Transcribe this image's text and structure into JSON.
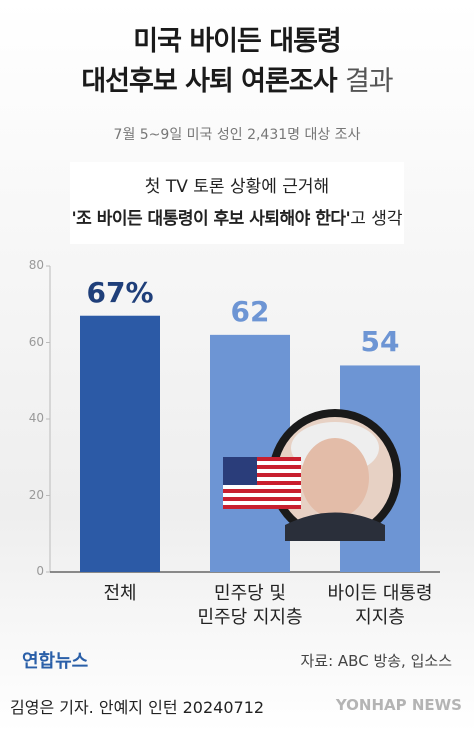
{
  "chart_data": {
    "type": "bar",
    "title": "미국 바이든 대통령\n대선후보 사퇴 여론조사",
    "title_suffix": "결과",
    "subtitle": "7월 5~9일 미국 성인 2,431명 대상 조사",
    "question": {
      "line1": "첫 TV 토론 상황에 근거해",
      "quote": "'조 바이든 대통령이 후보 사퇴해야 한다'",
      "suffix": "고 생각"
    },
    "categories": [
      "전체",
      "민주당 및\n민주당 지지층",
      "바이든 대통령\n지지층"
    ],
    "values": [
      67,
      62,
      54
    ],
    "value_labels": [
      "67%",
      "62",
      "54"
    ],
    "colors": [
      "#2c5aa6",
      "#6d95d4",
      "#6d95d4"
    ],
    "label_colors": [
      "#1f3f7a",
      "#6d95d4",
      "#6d95d4"
    ],
    "ylim": [
      0,
      80
    ],
    "yticks": [
      0,
      20,
      40,
      60,
      80
    ],
    "source": "자료: ABC 방송, 입소스",
    "logo": "연합뉴스",
    "credit": "김영은 기자. 안예지 인턴  20240712",
    "watermark": "YONHAP NEWS"
  }
}
